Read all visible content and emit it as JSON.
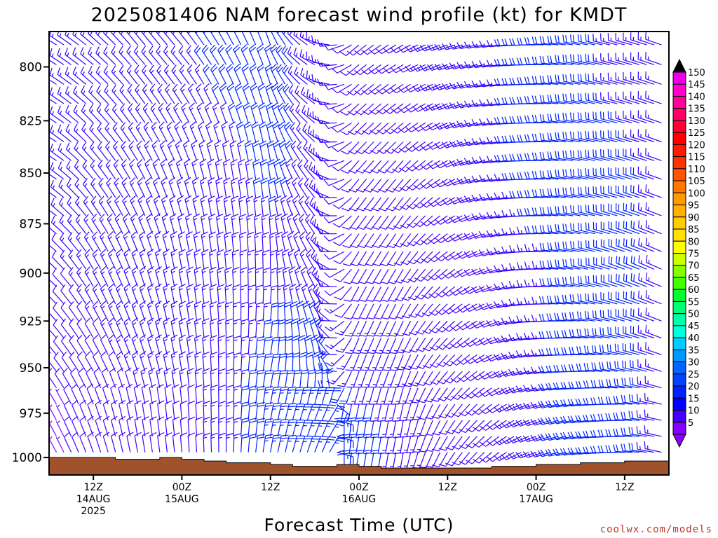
{
  "chart_data": {
    "type": "wind_barb_time_height",
    "title": "2025081406 NAM forecast wind profile (kt) for KMDT",
    "xlabel": "Forecast Time (UTC)",
    "ylabel": "",
    "y_ticks": [
      "800",
      "825",
      "850",
      "875",
      "900",
      "925",
      "950",
      "975",
      "1000"
    ],
    "y_tick_values": [
      800,
      825,
      850,
      875,
      900,
      925,
      950,
      975,
      1000
    ],
    "ylim": [
      1010,
      784
    ],
    "y_scale": "log-pressure",
    "x_ticks": [
      {
        "hour": 6,
        "lines": [
          "12Z",
          "14AUG",
          "2025"
        ]
      },
      {
        "hour": 18,
        "lines": [
          "00Z",
          "15AUG"
        ]
      },
      {
        "hour": 30,
        "lines": [
          "12Z"
        ]
      },
      {
        "hour": 42,
        "lines": [
          "00Z",
          "16AUG"
        ]
      },
      {
        "hour": 54,
        "lines": [
          "12Z"
        ]
      },
      {
        "hour": 66,
        "lines": [
          "00Z",
          "17AUG"
        ]
      },
      {
        "hour": 78,
        "lines": [
          "12Z"
        ]
      }
    ],
    "xlim": [
      0,
      84
    ],
    "colorbar": {
      "units": "kt",
      "labels": [
        "150",
        "145",
        "140",
        "135",
        "130",
        "125",
        "120",
        "115",
        "110",
        "105",
        "100",
        "95",
        "90",
        "85",
        "80",
        "75",
        "70",
        "65",
        "60",
        "55",
        "50",
        "45",
        "40",
        "35",
        "30",
        "25",
        "20",
        "15",
        "10",
        "5"
      ],
      "colors": [
        "#ee00ee",
        "#ff00cc",
        "#ff0099",
        "#ff0066",
        "#ff0033",
        "#ff0000",
        "#ff1a00",
        "#ff3300",
        "#ff5500",
        "#ff7700",
        "#ff9900",
        "#ffb000",
        "#ffcc00",
        "#ffe000",
        "#ffff00",
        "#ccff00",
        "#88ff00",
        "#44ff00",
        "#00ff33",
        "#00ff77",
        "#00ffaa",
        "#00ffdd",
        "#00ccff",
        "#0099ff",
        "#0066ff",
        "#0044ff",
        "#0022ff",
        "#0000ff",
        "#4400ff",
        "#8800ff"
      ],
      "top_arrow_color": "#000000",
      "bottom_arrow_color": "#8800ff"
    },
    "terrain_color": "#a0522d",
    "terrain_surface_pressure": [
      {
        "hour": 0,
        "p": 1000
      },
      {
        "hour": 3,
        "p": 1000
      },
      {
        "hour": 6,
        "p": 1000
      },
      {
        "hour": 9,
        "p": 1001
      },
      {
        "hour": 12,
        "p": 1001
      },
      {
        "hour": 15,
        "p": 1000
      },
      {
        "hour": 18,
        "p": 1001
      },
      {
        "hour": 21,
        "p": 1002
      },
      {
        "hour": 24,
        "p": 1003
      },
      {
        "hour": 27,
        "p": 1003
      },
      {
        "hour": 30,
        "p": 1004
      },
      {
        "hour": 33,
        "p": 1005
      },
      {
        "hour": 36,
        "p": 1005
      },
      {
        "hour": 39,
        "p": 1004
      },
      {
        "hour": 42,
        "p": 1005
      },
      {
        "hour": 45,
        "p": 1006
      },
      {
        "hour": 48,
        "p": 1006
      },
      {
        "hour": 51,
        "p": 1006
      },
      {
        "hour": 54,
        "p": 1006
      },
      {
        "hour": 57,
        "p": 1006
      },
      {
        "hour": 60,
        "p": 1005
      },
      {
        "hour": 63,
        "p": 1005
      },
      {
        "hour": 66,
        "p": 1004
      },
      {
        "hour": 69,
        "p": 1004
      },
      {
        "hour": 72,
        "p": 1003
      },
      {
        "hour": 75,
        "p": 1003
      },
      {
        "hour": 78,
        "p": 1002
      },
      {
        "hour": 81,
        "p": 1002
      },
      {
        "hour": 84,
        "p": 1001
      }
    ],
    "wind_sample": {
      "note_hours": [
        0,
        6,
        12,
        18,
        24,
        30,
        36,
        42,
        48,
        54,
        60,
        66,
        72,
        78,
        84
      ],
      "levels_hpa": [
        800,
        850,
        900,
        950,
        975
      ],
      "direction_deg": [
        [
          300,
          310,
          320,
          320,
          330,
          340,
          300,
          230,
          240,
          250,
          260,
          270,
          280,
          285,
          290
        ],
        [
          300,
          320,
          330,
          340,
          350,
          350,
          320,
          220,
          220,
          240,
          260,
          270,
          280,
          285,
          290
        ],
        [
          310,
          330,
          340,
          350,
          355,
          360,
          330,
          210,
          210,
          230,
          250,
          270,
          280,
          290,
          295
        ],
        [
          320,
          330,
          340,
          350,
          360,
          10,
          350,
          200,
          200,
          220,
          240,
          260,
          270,
          280,
          290
        ],
        [
          330,
          340,
          350,
          355,
          360,
          10,
          20,
          190,
          190,
          210,
          230,
          250,
          260,
          270,
          285
        ]
      ],
      "speed_kt": [
        [
          15,
          15,
          15,
          15,
          20,
          20,
          15,
          10,
          10,
          15,
          15,
          20,
          20,
          15,
          15
        ],
        [
          15,
          15,
          15,
          15,
          15,
          20,
          15,
          10,
          10,
          10,
          15,
          20,
          20,
          20,
          15
        ],
        [
          10,
          15,
          15,
          15,
          15,
          15,
          15,
          10,
          10,
          10,
          10,
          15,
          20,
          20,
          15
        ],
        [
          10,
          10,
          15,
          15,
          15,
          20,
          20,
          15,
          15,
          10,
          10,
          15,
          20,
          20,
          15
        ],
        [
          5,
          10,
          10,
          10,
          15,
          25,
          25,
          20,
          15,
          10,
          10,
          15,
          20,
          20,
          15
        ]
      ]
    }
  },
  "credit": "coolwx.com/models"
}
